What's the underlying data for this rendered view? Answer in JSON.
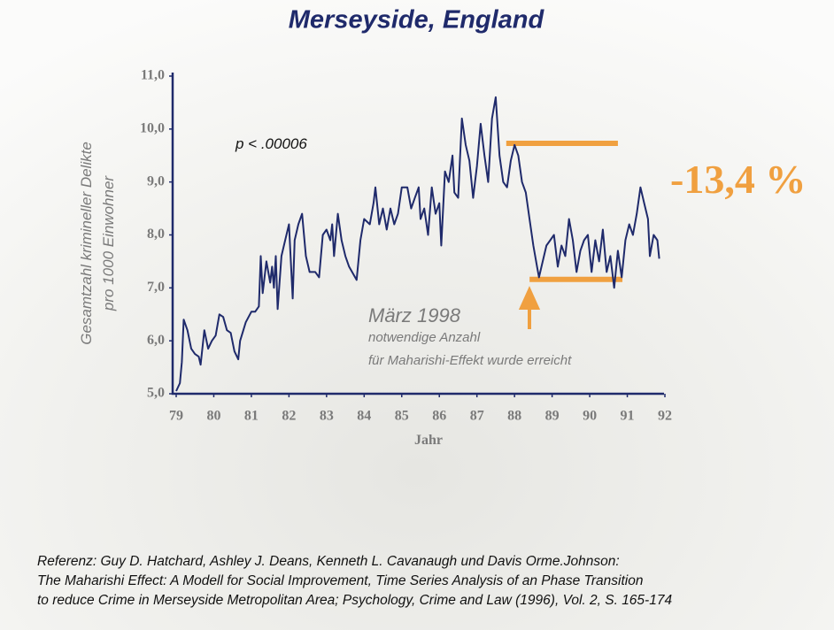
{
  "chart_data": {
    "type": "line",
    "title": "Merseyside, England",
    "ylabel": [
      "Gesamtzahl krimineller Delikte",
      "pro 1000 Einwohner"
    ],
    "xlabel": "Jahr",
    "p_value_label": "p < .00006",
    "annotation_title": "März 1998",
    "annotation_lines": [
      "notwendige Anzahl",
      "für Maharishi-Effekt wurde erreicht"
    ],
    "change_label": "-13,4 %",
    "reference": [
      "Referenz: Guy D. Hatchard, Ashley J. Deans, Kenneth L. Cavanaugh und Davis Orme.Johnson:",
      "The Maharishi Effect: A Modell for Social Improvement, Time Series Analysis of an Phase Transition",
      "to reduce Crime in Merseyside Metropolitan Area; Psychology, Crime and Law (1996), Vol. 2, S. 165-174"
    ],
    "xlim": [
      79,
      92
    ],
    "xticks": [
      79,
      80,
      81,
      82,
      83,
      84,
      85,
      86,
      87,
      88,
      89,
      90,
      91,
      92
    ],
    "ylim": [
      5,
      11
    ],
    "yticks": [
      {
        "value": 5,
        "label": "5,0"
      },
      {
        "value": 6,
        "label": "6,0"
      },
      {
        "value": 7,
        "label": "7,0"
      },
      {
        "value": 8,
        "label": "8,0"
      },
      {
        "value": 9,
        "label": "9,0"
      },
      {
        "value": 10,
        "label": "10,0"
      },
      {
        "value": 11,
        "label": "11,0"
      }
    ],
    "color": "#1f2a6b",
    "level_color": "#f0a040",
    "levels": [
      {
        "value": 9.73,
        "x": [
          87.78,
          90.75
        ]
      },
      {
        "value": 7.16,
        "x": [
          88.4,
          90.87
        ]
      }
    ],
    "x": [
      79.0,
      79.1,
      79.15,
      79.2,
      79.3,
      79.4,
      79.5,
      79.6,
      79.65,
      79.75,
      79.85,
      79.95,
      80.05,
      80.15,
      80.25,
      80.35,
      80.45,
      80.55,
      80.65,
      80.7,
      80.85,
      81.0,
      81.1,
      81.2,
      81.25,
      81.3,
      81.4,
      81.5,
      81.55,
      81.6,
      81.65,
      81.7,
      81.8,
      81.9,
      82.0,
      82.1,
      82.15,
      82.25,
      82.35,
      82.45,
      82.55,
      82.7,
      82.8,
      82.9,
      83.0,
      83.1,
      83.15,
      83.2,
      83.3,
      83.4,
      83.5,
      83.6,
      83.8,
      83.9,
      84.0,
      84.15,
      84.25,
      84.3,
      84.4,
      84.5,
      84.6,
      84.7,
      84.8,
      84.9,
      85.0,
      85.15,
      85.25,
      85.35,
      85.45,
      85.5,
      85.6,
      85.7,
      85.8,
      85.9,
      86.0,
      86.05,
      86.15,
      86.25,
      86.35,
      86.4,
      86.5,
      86.6,
      86.7,
      86.8,
      86.9,
      87.0,
      87.1,
      87.2,
      87.3,
      87.4,
      87.5,
      87.6,
      87.7,
      87.8,
      87.9,
      88.0,
      88.1,
      88.2,
      88.3,
      88.4,
      88.5,
      88.6,
      88.65,
      88.75,
      88.85,
      88.95,
      89.05,
      89.15,
      89.25,
      89.35,
      89.45,
      89.55,
      89.65,
      89.75,
      89.85,
      89.95,
      90.05,
      90.15,
      90.25,
      90.35,
      90.45,
      90.55,
      90.65,
      90.75,
      90.85,
      90.95,
      91.05,
      91.15,
      91.25,
      91.35,
      91.45,
      91.55,
      91.6,
      91.7,
      91.8,
      91.85
    ],
    "values": [
      5.05,
      5.2,
      5.6,
      6.4,
      6.2,
      5.85,
      5.75,
      5.7,
      5.55,
      6.2,
      5.85,
      6.0,
      6.1,
      6.5,
      6.45,
      6.2,
      6.15,
      5.8,
      5.65,
      6.0,
      6.35,
      6.55,
      6.55,
      6.65,
      7.6,
      6.9,
      7.5,
      7.1,
      7.4,
      7.0,
      7.6,
      6.6,
      7.6,
      7.9,
      8.2,
      6.8,
      7.9,
      8.2,
      8.4,
      7.6,
      7.3,
      7.3,
      7.2,
      8.0,
      8.1,
      7.9,
      8.2,
      7.6,
      8.4,
      7.9,
      7.6,
      7.4,
      7.15,
      7.9,
      8.3,
      8.2,
      8.6,
      8.9,
      8.2,
      8.5,
      8.1,
      8.5,
      8.2,
      8.4,
      8.9,
      8.9,
      8.5,
      8.7,
      8.9,
      8.3,
      8.5,
      8.0,
      8.9,
      8.4,
      8.6,
      7.8,
      9.2,
      9.0,
      9.5,
      8.8,
      8.7,
      10.2,
      9.7,
      9.4,
      8.7,
      9.3,
      10.1,
      9.5,
      9.0,
      10.2,
      10.6,
      9.5,
      9.0,
      8.9,
      9.4,
      9.7,
      9.5,
      9.0,
      8.8,
      8.3,
      7.8,
      7.4,
      7.2,
      7.5,
      7.8,
      7.9,
      8.0,
      7.4,
      7.8,
      7.6,
      8.3,
      7.9,
      7.3,
      7.7,
      7.9,
      8.0,
      7.3,
      7.9,
      7.5,
      8.1,
      7.3,
      7.6,
      7.0,
      7.7,
      7.2,
      7.9,
      8.2,
      8.0,
      8.4,
      8.9,
      8.6,
      8.3,
      7.6,
      8.0,
      7.9,
      7.55
    ]
  }
}
